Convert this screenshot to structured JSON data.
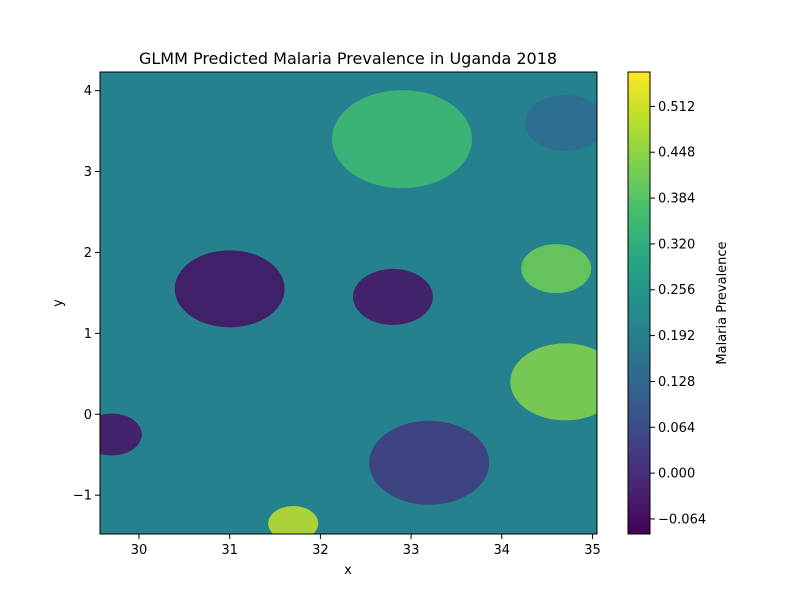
{
  "chart_data": {
    "type": "heatmap",
    "title": "GLMM Predicted Malaria Prevalence in Uganda 2018",
    "xlabel": "x",
    "ylabel": "y",
    "xlim": [
      29.57,
      35.05
    ],
    "ylim": [
      -1.48,
      4.23
    ],
    "x_ticks": [
      30,
      31,
      32,
      33,
      34,
      35
    ],
    "x_tick_labels": [
      "30",
      "31",
      "32",
      "33",
      "34",
      "35"
    ],
    "y_ticks": [
      -1,
      0,
      1,
      2,
      3,
      4
    ],
    "y_tick_labels": [
      "−1",
      "0",
      "1",
      "2",
      "3",
      "4"
    ],
    "grid": false,
    "colormap": "viridis",
    "colorbar": {
      "label": "Malaria Prevalence",
      "range": [
        -0.085,
        0.56
      ],
      "ticks": [
        -0.064,
        0.0,
        0.064,
        0.128,
        0.192,
        0.256,
        0.32,
        0.384,
        0.448,
        0.512
      ],
      "tick_labels": [
        "−0.064",
        "0.000",
        "0.064",
        "0.128",
        "0.192",
        "0.256",
        "0.320",
        "0.384",
        "0.448",
        "0.512"
      ]
    },
    "approximate_field": {
      "background_value": 0.2,
      "features": [
        {
          "x": 31.0,
          "y": 1.55,
          "value": -0.06
        },
        {
          "x": 32.8,
          "y": 1.45,
          "value": -0.05
        },
        {
          "x": 33.2,
          "y": -0.6,
          "value": 0.02
        },
        {
          "x": 29.7,
          "y": -0.25,
          "value": -0.05
        },
        {
          "x": 32.9,
          "y": 3.4,
          "value": 0.36
        },
        {
          "x": 34.7,
          "y": 0.4,
          "value": 0.44
        },
        {
          "x": 34.6,
          "y": 1.8,
          "value": 0.42
        },
        {
          "x": 31.7,
          "y": -1.35,
          "value": 0.5
        },
        {
          "x": 34.7,
          "y": 3.6,
          "value": 0.14
        }
      ]
    }
  }
}
